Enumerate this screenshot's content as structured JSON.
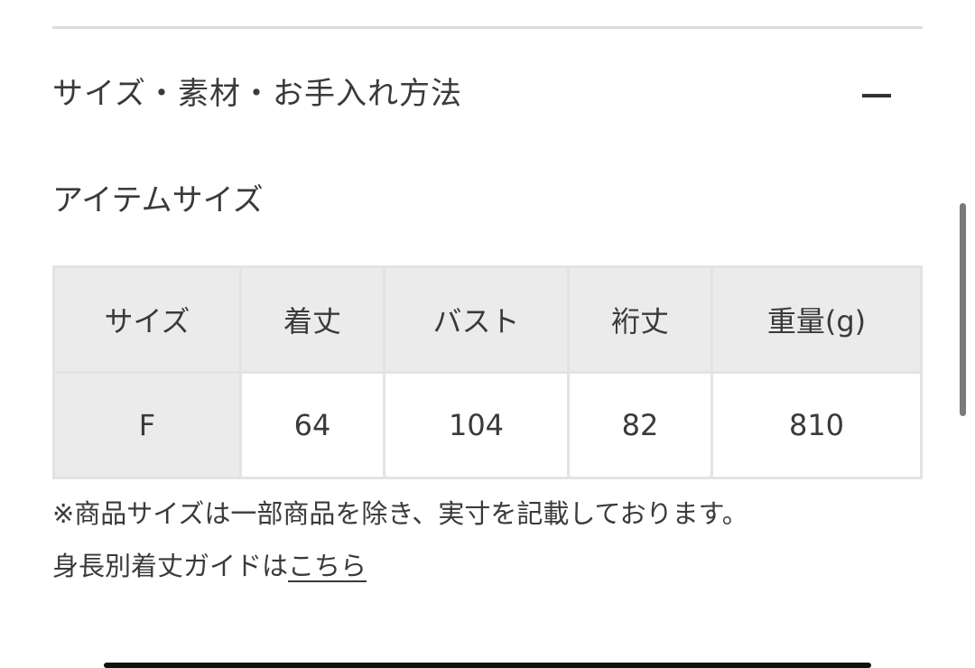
{
  "accordion": {
    "title": "サイズ・素材・お手入れ方法",
    "toggle_icon": "minus-icon"
  },
  "item_size": {
    "title": "アイテムサイズ",
    "table": {
      "headers": [
        "サイズ",
        "着丈",
        "バスト",
        "裄丈",
        "重量(g)"
      ],
      "rows": [
        [
          "F",
          "64",
          "104",
          "82",
          "810"
        ]
      ]
    },
    "note": "※商品サイズは一部商品を除き、実寸を記載しております。",
    "guide_prefix": "身長別着丈ガイドは",
    "guide_link": "こちら"
  }
}
